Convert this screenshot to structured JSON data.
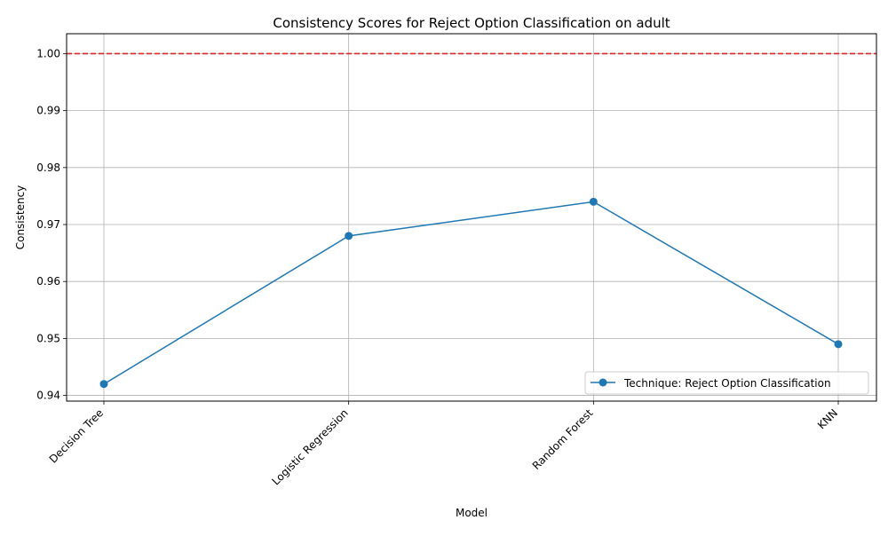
{
  "chart_data": {
    "type": "line",
    "title": "Consistency Scores for Reject Option Classification on adult",
    "xlabel": "Model",
    "ylabel": "Consistency",
    "categories": [
      "Decision Tree",
      "Logistic Regression",
      "Random Forest",
      "KNN"
    ],
    "series": [
      {
        "name": "Technique: Reject Option Classification",
        "values": [
          0.942,
          0.968,
          0.974,
          0.949
        ],
        "color": "#1f77b4",
        "marker": "circle"
      }
    ],
    "reference_line": {
      "y": 1.0,
      "color": "#d62728",
      "style": "dashed"
    },
    "ylim": [
      0.939,
      1.0035
    ],
    "yticks": [
      "0.94",
      "0.95",
      "0.96",
      "0.97",
      "0.98",
      "0.99",
      "1.00"
    ],
    "x_tick_rotation": 45,
    "grid": true,
    "legend_position": "lower-right"
  }
}
